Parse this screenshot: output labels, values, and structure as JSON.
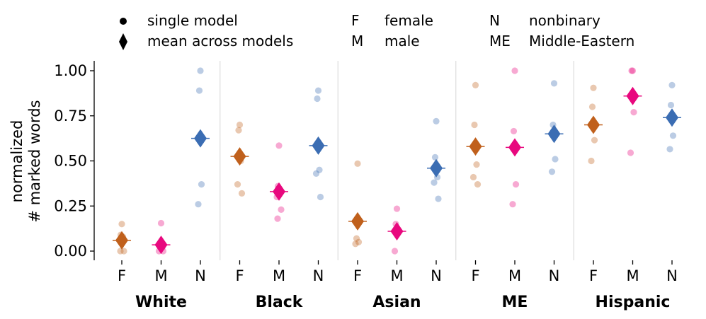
{
  "legend": {
    "markers": [
      {
        "symbol": "circle",
        "label": "single model"
      },
      {
        "symbol": "diamond",
        "label": "mean across models"
      }
    ],
    "abbreviations": [
      {
        "key": "F",
        "label": "female"
      },
      {
        "key": "M",
        "label": "male"
      },
      {
        "key": "N",
        "label": "nonbinary"
      },
      {
        "key": "ME",
        "label": "Middle-Eastern"
      }
    ]
  },
  "chart_data": {
    "type": "scatter",
    "ylabel_lines": [
      "normalized",
      "# marked words"
    ],
    "ylim": [
      -0.04,
      1.06
    ],
    "yticks": [
      "0.00",
      "0.25",
      "0.50",
      "0.75",
      "1.00"
    ],
    "ytick_values": [
      0,
      0.25,
      0.5,
      0.75,
      1.0
    ],
    "gender_labels": [
      "F",
      "M",
      "N"
    ],
    "colors": {
      "F": "#c0601c",
      "M": "#e8087e",
      "N": "#3b6db3"
    },
    "groups": [
      {
        "name": "White",
        "points": {
          "F": [
            0.15,
            0.09,
            0.08,
            0.06,
            0.0,
            0.0
          ],
          "M": [
            0.155,
            0.03,
            0.02,
            0.0,
            0.0
          ],
          "N": [
            1.0,
            0.89,
            0.37,
            0.26
          ]
        },
        "means": {
          "F": 0.06,
          "M": 0.035,
          "N": 0.625
        }
      },
      {
        "name": "Black",
        "points": {
          "F": [
            0.7,
            0.67,
            0.5,
            0.37,
            0.32
          ],
          "M": [
            0.585,
            0.36,
            0.33,
            0.3,
            0.23,
            0.18
          ],
          "N": [
            0.89,
            0.845,
            0.45,
            0.43,
            0.3
          ]
        },
        "means": {
          "F": 0.525,
          "M": 0.33,
          "N": 0.585
        }
      },
      {
        "name": "Asian",
        "points": {
          "F": [
            0.485,
            0.07,
            0.05,
            0.04
          ],
          "M": [
            0.235,
            0.15,
            0.12,
            0.0
          ],
          "N": [
            0.72,
            0.52,
            0.41,
            0.38,
            0.29
          ]
        },
        "means": {
          "F": 0.165,
          "M": 0.11,
          "N": 0.46
        }
      },
      {
        "name": "ME",
        "points": {
          "F": [
            0.92,
            0.7,
            0.48,
            0.41,
            0.37
          ],
          "M": [
            1.0,
            0.665,
            0.37,
            0.26
          ],
          "N": [
            0.93,
            0.7,
            0.51,
            0.44
          ]
        },
        "means": {
          "F": 0.58,
          "M": 0.575,
          "N": 0.65
        }
      },
      {
        "name": "Hispanic",
        "points": {
          "F": [
            0.905,
            0.8,
            0.615,
            0.5
          ],
          "M": [
            1.0,
            1.0,
            0.77,
            0.545
          ],
          "N": [
            0.92,
            0.81,
            0.64,
            0.565
          ]
        },
        "means": {
          "F": 0.7,
          "M": 0.86,
          "N": 0.74
        }
      }
    ]
  }
}
